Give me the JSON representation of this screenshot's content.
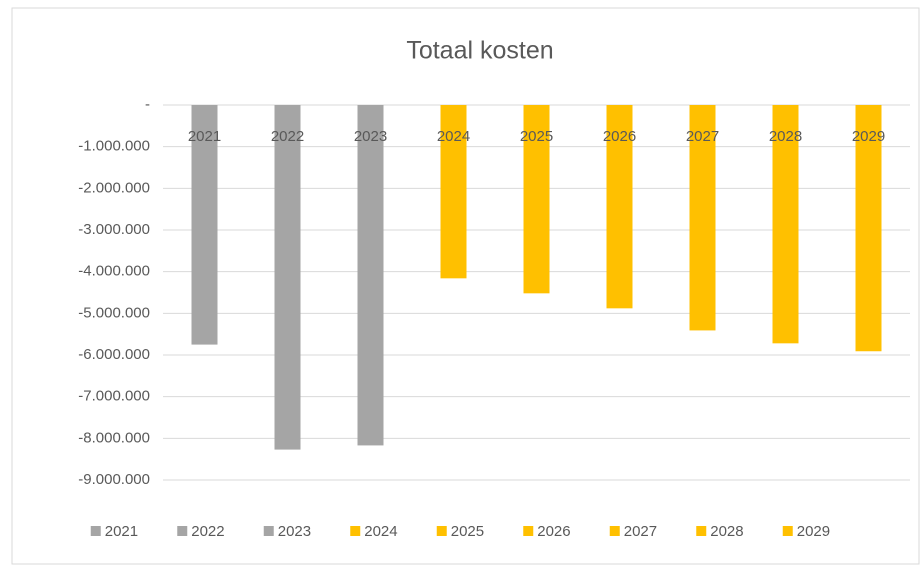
{
  "chart_data": {
    "type": "bar",
    "title": "Totaal kosten",
    "categories": [
      "2021",
      "2022",
      "2023",
      "2024",
      "2025",
      "2026",
      "2027",
      "2028",
      "2029"
    ],
    "values": [
      -5750000,
      -8270000,
      -8170000,
      -4160000,
      -4520000,
      -4880000,
      -5410000,
      -5720000,
      -5910000
    ],
    "colors": [
      "#a5a5a5",
      "#a5a5a5",
      "#a5a5a5",
      "#ffc000",
      "#ffc000",
      "#ffc000",
      "#ffc000",
      "#ffc000",
      "#ffc000"
    ],
    "ylim": [
      -9000000,
      0
    ],
    "yticks": [
      {
        "value": 0,
        "label": "-"
      },
      {
        "value": -1000000,
        "label": "-1.000.000"
      },
      {
        "value": -2000000,
        "label": "-2.000.000"
      },
      {
        "value": -3000000,
        "label": "-3.000.000"
      },
      {
        "value": -4000000,
        "label": "-4.000.000"
      },
      {
        "value": -5000000,
        "label": "-5.000.000"
      },
      {
        "value": -6000000,
        "label": "-6.000.000"
      },
      {
        "value": -7000000,
        "label": "-7.000.000"
      },
      {
        "value": -8000000,
        "label": "-8.000.000"
      },
      {
        "value": -9000000,
        "label": "-9.000.000"
      }
    ],
    "grid": true,
    "legend": "bottom"
  }
}
